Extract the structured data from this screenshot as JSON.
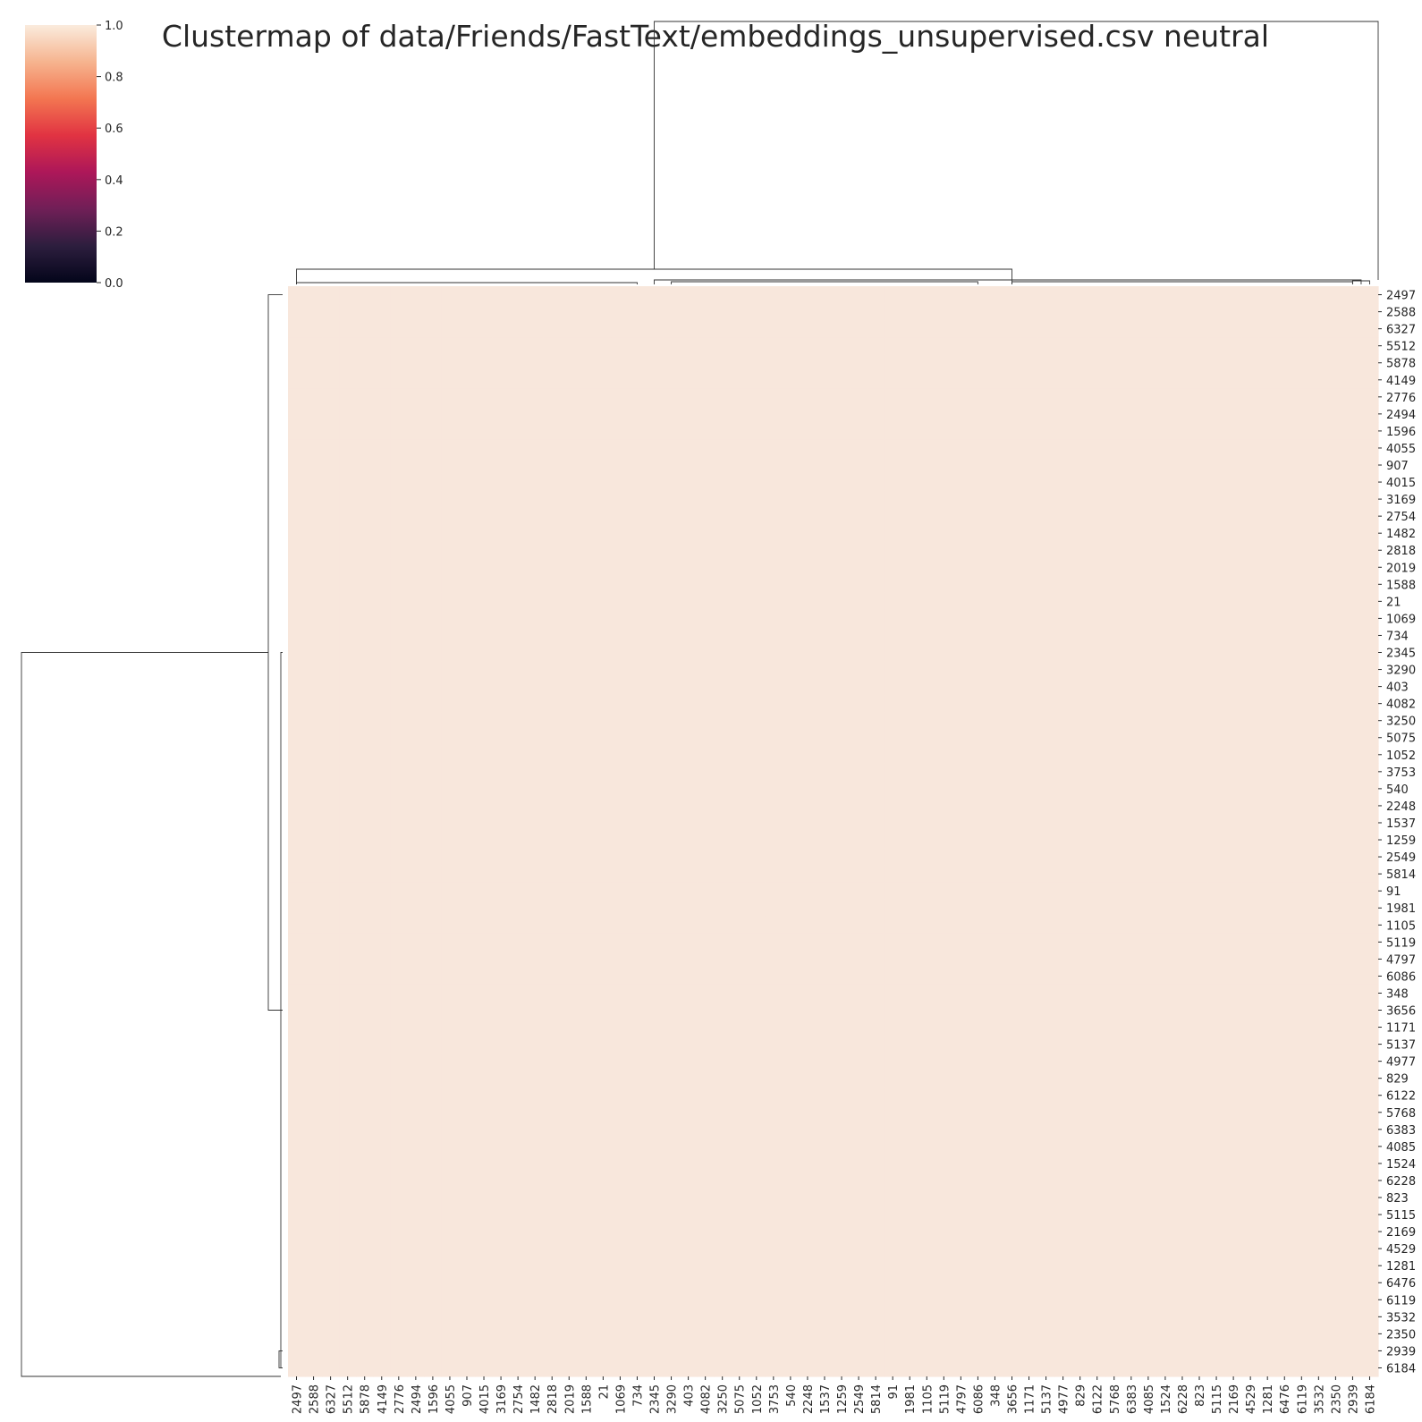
{
  "chart_data": {
    "type": "heatmap",
    "title": "Clustermap of data/Friends/FastText/embeddings_unsupervised.csv neutral",
    "row_labels": [
      "2497",
      "2588",
      "6327",
      "5512",
      "5878",
      "4149",
      "2776",
      "2494",
      "1596",
      "4055",
      "907",
      "4015",
      "3169",
      "2754",
      "1482",
      "2818",
      "2019",
      "1588",
      "21",
      "1069",
      "734",
      "2345",
      "3290",
      "403",
      "4082",
      "3250",
      "5075",
      "1052",
      "3753",
      "540",
      "2248",
      "1537",
      "1259",
      "2549",
      "5814",
      "91",
      "1981",
      "1105",
      "5119",
      "4797",
      "6086",
      "348",
      "3656",
      "1171",
      "5137",
      "4977",
      "829",
      "6122",
      "5768",
      "6383",
      "4085",
      "1524",
      "6228",
      "823",
      "5115",
      "2169",
      "4529",
      "1281",
      "6476",
      "6119",
      "3532",
      "2350",
      "2939",
      "6184"
    ],
    "col_labels": [
      "2497",
      "2588",
      "6327",
      "5512",
      "5878",
      "4149",
      "2776",
      "2494",
      "1596",
      "4055",
      "907",
      "4015",
      "3169",
      "2754",
      "1482",
      "2818",
      "2019",
      "1588",
      "21",
      "1069",
      "734",
      "2345",
      "3290",
      "403",
      "4082",
      "3250",
      "5075",
      "1052",
      "3753",
      "540",
      "2248",
      "1537",
      "1259",
      "2549",
      "5814",
      "91",
      "1981",
      "1105",
      "5119",
      "4797",
      "6086",
      "348",
      "3656",
      "1171",
      "5137",
      "4977",
      "829",
      "6122",
      "5768",
      "6383",
      "4085",
      "1524",
      "6228",
      "823",
      "5115",
      "2169",
      "4529",
      "1281",
      "6476",
      "6119",
      "3532",
      "2350",
      "2939",
      "6184"
    ],
    "cell_value_approx": 0.97,
    "colorbar": {
      "min": 0.0,
      "max": 1.0,
      "ticks": [
        "0.0",
        "0.2",
        "0.4",
        "0.6",
        "0.8",
        "1.0"
      ],
      "colors": [
        "#03051a",
        "#2d1e3e",
        "#701f57",
        "#ad1759",
        "#e13342",
        "#f37651",
        "#f6b48f",
        "#faebdd"
      ]
    },
    "cell_color": "#f8e7dc",
    "row_dendrogram": true,
    "col_dendrogram": true
  }
}
